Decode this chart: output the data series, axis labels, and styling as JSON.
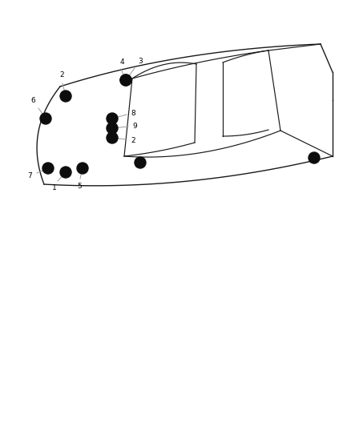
{
  "bg_color": "#ffffff",
  "car_line_color": "#1a1a1a",
  "dot_color": "#0d0d0d",
  "label_color": "#000000",
  "label_fontsize": 6.5,
  "leader_line_color": "#999999",
  "figsize": [
    4.38,
    5.33
  ],
  "dpi": 100
}
